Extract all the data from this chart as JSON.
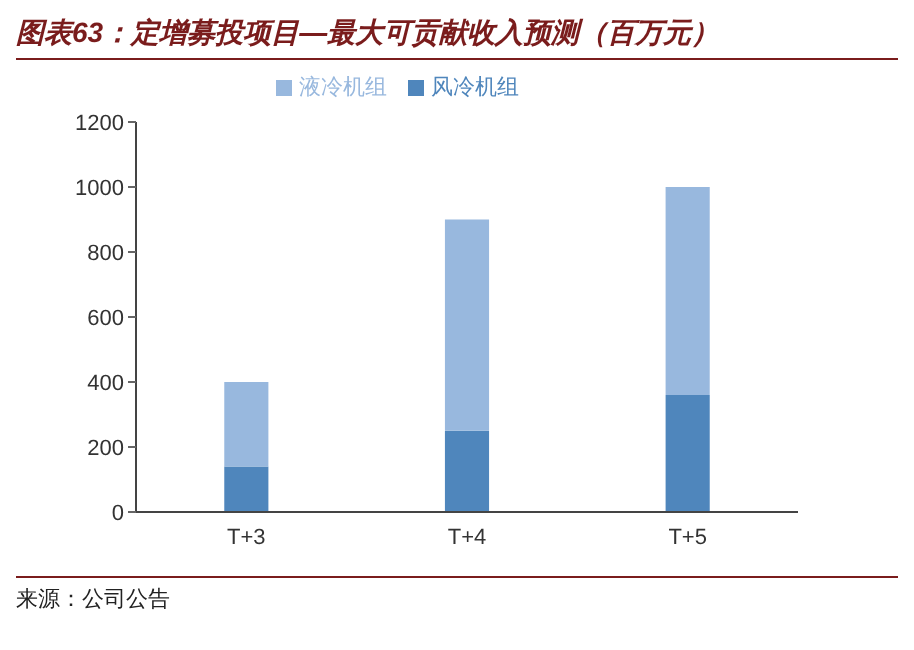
{
  "chart_data": {
    "type": "bar",
    "title": "图表63：定增募投项目—最大可贡献收入预测（百万元）",
    "categories": [
      "T+3",
      "T+4",
      "T+5"
    ],
    "series": [
      {
        "name": "风冷机组",
        "color": "#4f86bc",
        "values": [
          140,
          250,
          360
        ]
      },
      {
        "name": "液冷机组",
        "color": "#98b8de",
        "values": [
          260,
          650,
          640
        ]
      }
    ],
    "stacked": true,
    "ylim": [
      0,
      1200
    ],
    "yticks": [
      0,
      200,
      400,
      600,
      800,
      1000,
      1200
    ],
    "grid": false,
    "legend": "top",
    "annotations": [
      "来源：公司公告"
    ]
  }
}
